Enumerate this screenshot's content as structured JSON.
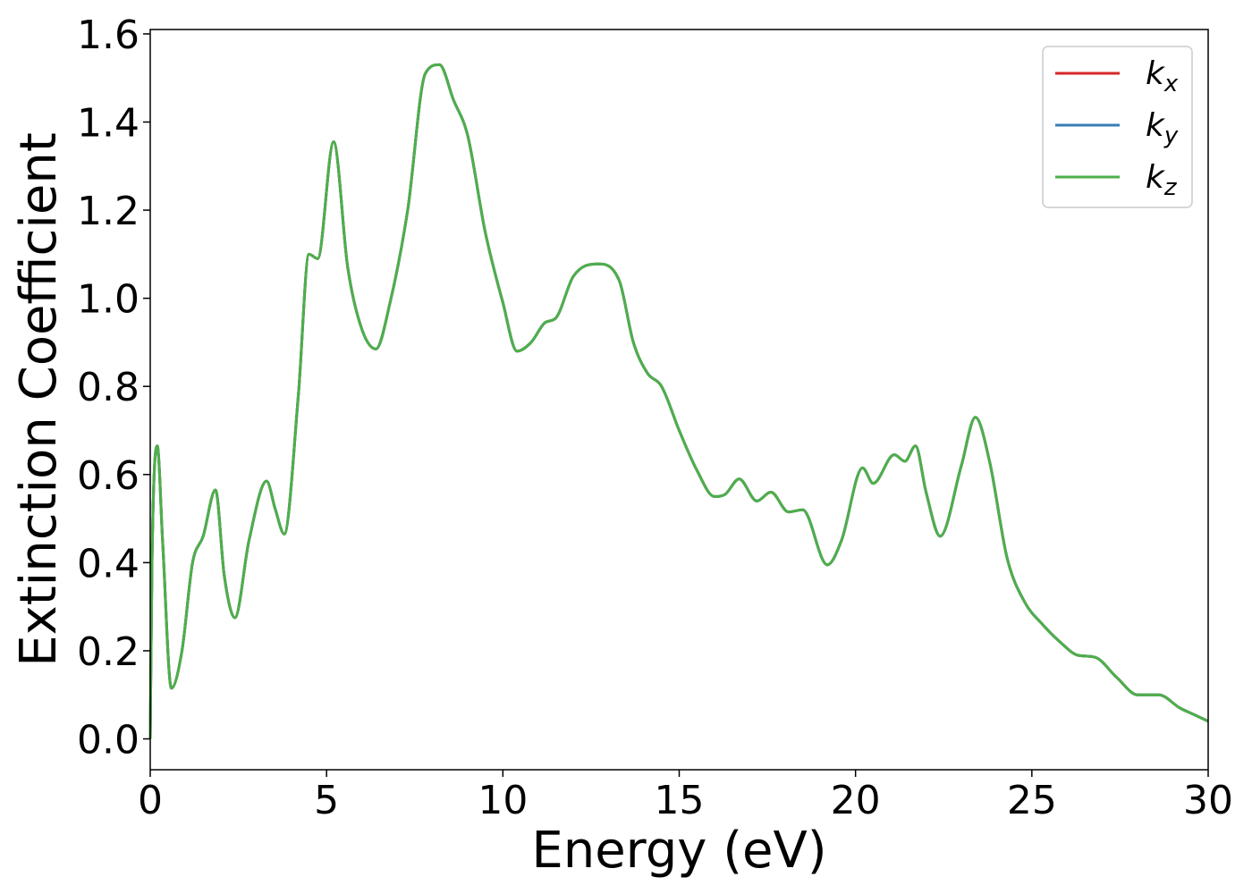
{
  "chart_data": {
    "type": "line",
    "title": "",
    "xlabel": "Energy (eV)",
    "ylabel": "Extinction Coefficient",
    "xlim": [
      0,
      30
    ],
    "ylim": [
      -0.07,
      1.61
    ],
    "xticks": [
      0,
      5,
      10,
      15,
      20,
      25,
      30
    ],
    "xtick_labels": [
      "0",
      "5",
      "10",
      "15",
      "20",
      "25",
      "30"
    ],
    "yticks": [
      0.0,
      0.2,
      0.4,
      0.6,
      0.8,
      1.0,
      1.2,
      1.4,
      1.6
    ],
    "ytick_labels": [
      "0.0",
      "0.2",
      "0.4",
      "0.6",
      "0.8",
      "1.0",
      "1.2",
      "1.4",
      "1.6"
    ],
    "grid": false,
    "legend_position": "top-right",
    "x": [
      0.0,
      0.05,
      0.2,
      0.35,
      0.6,
      0.9,
      1.2,
      1.5,
      1.85,
      2.1,
      2.4,
      2.8,
      3.3,
      3.55,
      3.8,
      4.2,
      4.5,
      4.75,
      5.2,
      5.6,
      6.0,
      6.4,
      6.8,
      7.3,
      7.8,
      8.2,
      8.6,
      9.0,
      9.5,
      10.0,
      10.4,
      10.8,
      11.2,
      11.5,
      12.0,
      12.7,
      13.3,
      13.7,
      14.1,
      14.5,
      15.0,
      15.5,
      16.0,
      16.3,
      16.7,
      17.2,
      17.6,
      18.1,
      18.5,
      19.2,
      19.6,
      20.2,
      20.5,
      21.1,
      21.4,
      21.7,
      22.0,
      22.4,
      23.0,
      23.4,
      23.8,
      24.3,
      24.8,
      25.3,
      25.8,
      26.3,
      26.8,
      27.4,
      28.0,
      28.6,
      29.2,
      29.6,
      30.0
    ],
    "series": [
      {
        "name": "kx",
        "color": "#d62728",
        "values": [
          0.0,
          0.4,
          0.665,
          0.45,
          0.115,
          0.2,
          0.4,
          0.46,
          0.565,
          0.37,
          0.275,
          0.45,
          0.585,
          0.52,
          0.465,
          0.78,
          1.1,
          1.09,
          1.355,
          1.07,
          0.93,
          0.885,
          0.99,
          1.2,
          1.51,
          1.53,
          1.45,
          1.37,
          1.15,
          0.99,
          0.88,
          0.9,
          0.945,
          0.955,
          1.05,
          1.078,
          1.04,
          0.9,
          0.83,
          0.8,
          0.7,
          0.61,
          0.55,
          0.555,
          0.59,
          0.54,
          0.56,
          0.515,
          0.52,
          0.395,
          0.45,
          0.615,
          0.58,
          0.645,
          0.63,
          0.665,
          0.56,
          0.46,
          0.62,
          0.73,
          0.63,
          0.41,
          0.31,
          0.26,
          0.22,
          0.19,
          0.185,
          0.14,
          0.1,
          0.1,
          0.07,
          0.055,
          0.04
        ]
      },
      {
        "name": "ky",
        "color": "#377eb8",
        "values": [
          0.0,
          0.4,
          0.665,
          0.45,
          0.115,
          0.2,
          0.4,
          0.46,
          0.565,
          0.37,
          0.275,
          0.45,
          0.585,
          0.52,
          0.465,
          0.78,
          1.1,
          1.09,
          1.355,
          1.07,
          0.93,
          0.885,
          0.99,
          1.2,
          1.51,
          1.53,
          1.45,
          1.37,
          1.15,
          0.99,
          0.88,
          0.9,
          0.945,
          0.955,
          1.05,
          1.078,
          1.04,
          0.9,
          0.83,
          0.8,
          0.7,
          0.61,
          0.55,
          0.555,
          0.59,
          0.54,
          0.56,
          0.515,
          0.52,
          0.395,
          0.45,
          0.615,
          0.58,
          0.645,
          0.63,
          0.665,
          0.56,
          0.46,
          0.62,
          0.73,
          0.63,
          0.41,
          0.31,
          0.26,
          0.22,
          0.19,
          0.185,
          0.14,
          0.1,
          0.1,
          0.07,
          0.055,
          0.04
        ]
      },
      {
        "name": "kz",
        "color": "#4daf4a",
        "values": [
          0.0,
          0.4,
          0.665,
          0.45,
          0.115,
          0.2,
          0.4,
          0.46,
          0.565,
          0.37,
          0.275,
          0.45,
          0.585,
          0.52,
          0.465,
          0.78,
          1.1,
          1.09,
          1.355,
          1.07,
          0.93,
          0.885,
          0.99,
          1.2,
          1.51,
          1.53,
          1.45,
          1.37,
          1.15,
          0.99,
          0.88,
          0.9,
          0.945,
          0.955,
          1.05,
          1.078,
          1.04,
          0.9,
          0.83,
          0.8,
          0.7,
          0.61,
          0.55,
          0.555,
          0.59,
          0.54,
          0.56,
          0.515,
          0.52,
          0.395,
          0.45,
          0.615,
          0.58,
          0.645,
          0.63,
          0.665,
          0.56,
          0.46,
          0.62,
          0.73,
          0.63,
          0.41,
          0.31,
          0.26,
          0.22,
          0.19,
          0.185,
          0.14,
          0.1,
          0.1,
          0.07,
          0.055,
          0.04
        ]
      }
    ],
    "legend": [
      {
        "base": "k",
        "sub": "x",
        "color": "#d62728"
      },
      {
        "base": "k",
        "sub": "y",
        "color": "#377eb8"
      },
      {
        "base": "k",
        "sub": "z",
        "color": "#4daf4a"
      }
    ]
  }
}
